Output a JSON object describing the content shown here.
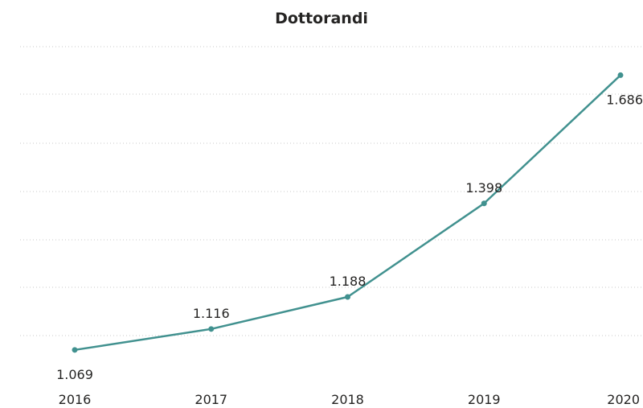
{
  "chart_data": {
    "type": "line",
    "title": "Dottorandi",
    "xlabel": "",
    "ylabel": "",
    "categories": [
      "2016",
      "2017",
      "2018",
      "2019",
      "2020"
    ],
    "series": [
      {
        "values": [
          1069,
          1116,
          1188,
          1398,
          1686
        ],
        "value_labels": [
          "1.069",
          "1.116",
          "1.188",
          "1.398",
          "1.686"
        ]
      }
    ],
    "ylim": [
      1000,
      1750
    ],
    "grid": true,
    "legend": "none",
    "colors": {
      "line": "#41918f",
      "grid": "#c8c8c8",
      "text": "#252423"
    }
  }
}
